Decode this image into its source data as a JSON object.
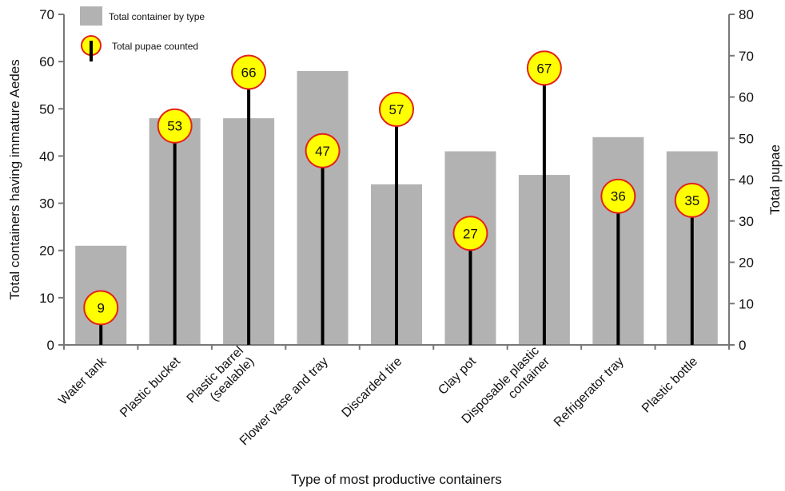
{
  "chart_data": {
    "type": "bar",
    "categories": [
      [
        "Water tank"
      ],
      [
        "Plastic bucket"
      ],
      [
        "Plastic barrel",
        "(sealable)"
      ],
      [
        "Flower vase and tray"
      ],
      [
        "Discarded tire"
      ],
      [
        "Clay pot"
      ],
      [
        "Disposable plastic",
        "container"
      ],
      [
        "Refrigerator tray"
      ],
      [
        "Plastic bottle"
      ]
    ],
    "series": [
      {
        "name": "Total container by type",
        "kind": "bar",
        "axis": "left",
        "color": "#b2b2b2",
        "values": [
          21,
          48,
          48,
          58,
          34,
          41,
          36,
          44,
          41
        ]
      },
      {
        "name": "Total pupae counted",
        "kind": "lollipop",
        "axis": "right",
        "marker_fill": "#ffff00",
        "marker_stroke": "#e2231a",
        "values": [
          9,
          53,
          66,
          47,
          57,
          27,
          67,
          36,
          35
        ]
      }
    ],
    "xlabel": "Type of most productive containers",
    "ylabel_left": "Total containers having immature Aedes",
    "ylabel_right": "Total pupae",
    "ylim_left": [
      0,
      70
    ],
    "yticks_left": [
      "0",
      "10",
      "20",
      "30",
      "40",
      "50",
      "60",
      "70"
    ],
    "ylim_right": [
      0,
      80
    ],
    "yticks_right": [
      "0",
      "10",
      "20",
      "30",
      "40",
      "50",
      "60",
      "70",
      "80"
    ],
    "grid": false,
    "legend_position": "top-left"
  }
}
